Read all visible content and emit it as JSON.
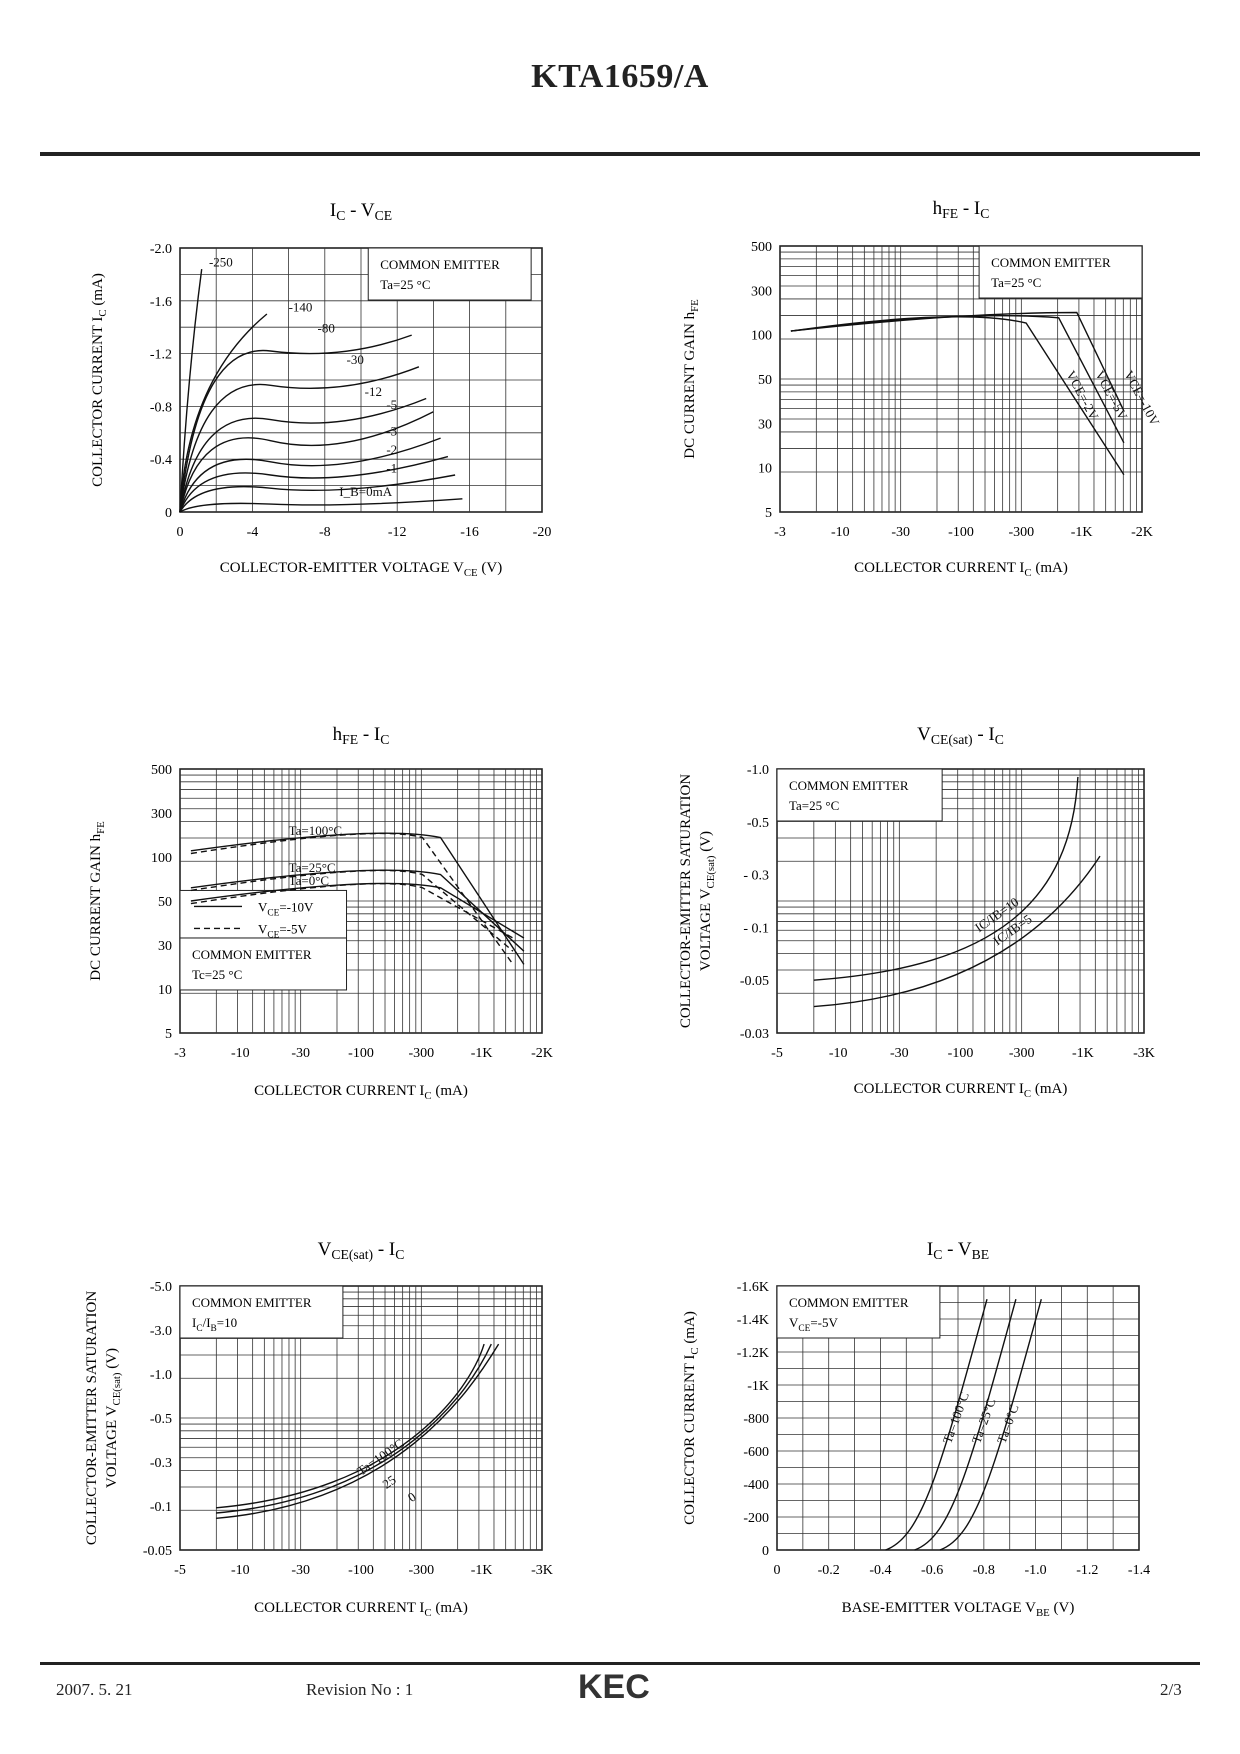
{
  "document": {
    "title": "KTA1659/A",
    "footer": {
      "date": "2007. 5. 21",
      "revision": "Revision No : 1",
      "brand": "KEC",
      "page": "2/3"
    }
  },
  "chart_data": [
    {
      "id": "ic-vce",
      "type": "line",
      "title": "I_C - V_CE",
      "xlabel": "COLLECTOR-EMITTER VOLTAGE V_CE (V)",
      "ylabel": "COLLECTOR CURRENT I_C (mA)",
      "x_ticks": [
        "0",
        "-4",
        "-8",
        "-12",
        "-16",
        "-20"
      ],
      "y_ticks": [
        "-2.0",
        "-1.6",
        "-1.2",
        "-0.8",
        "-0.4",
        "0"
      ],
      "xlim": [
        0,
        -20
      ],
      "ylim": [
        0,
        -2.0
      ],
      "annotation": [
        "COMMON EMITTER",
        "Ta=25°C"
      ],
      "series": [
        {
          "name": "-250",
          "label": "-250"
        },
        {
          "name": "-140",
          "label": "-140"
        },
        {
          "name": "-80",
          "label": "-80"
        },
        {
          "name": "-30",
          "label": "-30"
        },
        {
          "name": "-12",
          "label": "-12"
        },
        {
          "name": "-5",
          "label": "-5"
        },
        {
          "name": "-3",
          "label": "-3"
        },
        {
          "name": "-2",
          "label": "-2"
        },
        {
          "name": "-1",
          "label": "-1"
        },
        {
          "name": "0",
          "label": "I_B=0mA"
        }
      ]
    },
    {
      "id": "hfe-ic-1",
      "type": "line",
      "title": "h_FE - I_C",
      "xlabel": "COLLECTOR CURRENT I_C (mA)",
      "ylabel": "DC CURRENT GAIN h_FE",
      "x_ticks": [
        "-3",
        "-10",
        "-30",
        "-100",
        "-300",
        "-1K",
        "-2K"
      ],
      "y_ticks": [
        "500",
        "300",
        "100",
        "50",
        "30",
        "10",
        "5"
      ],
      "annotation": [
        "COMMON EMITTER",
        "Ta=25°C"
      ],
      "series": [
        {
          "name": "V_CE=-10V",
          "label": "VCE=-10V"
        },
        {
          "name": "V_CE=-5V",
          "label": "VCE=-5V"
        },
        {
          "name": "V_CE=-2V",
          "label": "VCE=-2V"
        }
      ]
    },
    {
      "id": "hfe-ic-2",
      "type": "line",
      "title": "h_FE - I_C",
      "xlabel": "COLLECTOR CURRENT I_C (mA)",
      "ylabel": "DC CURRENT GAIN h_FE",
      "x_ticks": [
        "-3",
        "-10",
        "-30",
        "-100",
        "-300",
        "-1K",
        "-2K"
      ],
      "y_ticks": [
        "500",
        "300",
        "100",
        "50",
        "30",
        "10",
        "5"
      ],
      "legend": [
        "V_CE=-10V",
        "V_CE=-5V"
      ],
      "annotation": [
        "COMMON EMITTER",
        "Tc=25°C"
      ],
      "series": [
        {
          "name": "Ta=100°C",
          "label": "Ta=100°C"
        },
        {
          "name": "Ta=25°C",
          "label": "Ta=25°C"
        },
        {
          "name": "Ta=0°C",
          "label": "Ta=0°C"
        }
      ]
    },
    {
      "id": "vcesat-ic-1",
      "type": "line",
      "title": "V_CE(sat) - I_C",
      "xlabel": "COLLECTOR CURRENT I_C (mA)",
      "ylabel": "COLLECTOR-EMITTER SATURATION VOLTAGE V_CE(sat) (V)",
      "x_ticks": [
        "-5",
        "-10",
        "-30",
        "-100",
        "-300",
        "-1K",
        "-3K"
      ],
      "y_ticks": [
        "-1.0",
        "-0.5",
        "- 0.3",
        "- 0.1",
        "-0.05",
        "-0.03"
      ],
      "annotation": [
        "COMMON EMITTER",
        "Ta=25°C"
      ],
      "series": [
        {
          "name": "I_C/I_B=10",
          "label": "IC/IB=10"
        },
        {
          "name": "I_C/I_B=5",
          "label": "IC/IB=5"
        }
      ]
    },
    {
      "id": "vcesat-ic-2",
      "type": "line",
      "title": "V_CE(sat) - I_C",
      "xlabel": "COLLECTOR CURRENT I_C (mA)",
      "ylabel": "COLLECTOR-EMITTER SATURATION VOLTAGE V_CE(sat) (V)",
      "x_ticks": [
        "-5",
        "-10",
        "-30",
        "-100",
        "-300",
        "-1K",
        "-3K"
      ],
      "y_ticks": [
        "-5.0",
        "-3.0",
        "-1.0",
        "-0.5",
        "-0.3",
        "-0.1",
        "-0.05"
      ],
      "annotation": [
        "COMMON EMITTER",
        "I_C/I_B=10"
      ],
      "series": [
        {
          "name": "Ta=100°C",
          "label": "Ta=100°C"
        },
        {
          "name": "25",
          "label": "25"
        },
        {
          "name": "0",
          "label": "0"
        }
      ]
    },
    {
      "id": "ic-vbe",
      "type": "line",
      "title": "I_C - V_BE",
      "xlabel": "BASE-EMITTER VOLTAGE V_BE (V)",
      "ylabel": "COLLECTOR CURRENT I_C (mA)",
      "x_ticks": [
        "0",
        "-0.2",
        "-0.4",
        "-0.6",
        "-0.8",
        "-1.0",
        "-1.2",
        "-1.4"
      ],
      "y_ticks": [
        "-1.6K",
        "-1.4K",
        "-1.2K",
        "-1K",
        "-800",
        "-600",
        "-400",
        "-200",
        "0"
      ],
      "annotation": [
        "COMMON EMITTER",
        "V_CE=-5V"
      ],
      "series": [
        {
          "name": "Ta=100°C",
          "label": "Ta=100°C"
        },
        {
          "name": "Ta=25°C",
          "label": "Ta=25°C"
        },
        {
          "name": "Ta=0°C",
          "label": "Ta=0°C"
        }
      ]
    }
  ]
}
